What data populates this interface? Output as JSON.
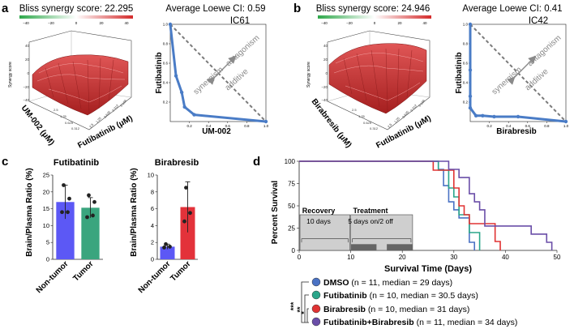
{
  "panel_labels": {
    "a": "a",
    "b": "b",
    "c": "c",
    "d": "d"
  },
  "colors": {
    "line_blue": "#4a7cc6",
    "dmso": "#4a72c4",
    "futibatinib": "#2aa58a",
    "birabresib": "#e03333",
    "combo": "#6a4ea8",
    "bar_blue": "#5c58f5",
    "bar_green": "#3aa57e",
    "bar_red": "#e3323a",
    "surface_red": "#c8302e"
  },
  "panel_a": {
    "colorbar_title": "Bliss synergy score: 22.295",
    "colorbar_ticks": [
      "−40",
      "−20",
      "0",
      "20",
      "40"
    ],
    "surface": {
      "z_label": "Synergy score",
      "z_ticks": [
        "40",
        "20",
        "0",
        "−20",
        "−40"
      ],
      "y_label": "UM-002 (μM)",
      "y_ticks": [
        "2.5",
        "1.25",
        "0.625",
        "0.312"
      ],
      "x_label": "Futibatinib (μM)",
      "x_ticks": [
        "0.156",
        "0.312",
        "0.625",
        "1.25",
        "2.5"
      ]
    },
    "isobologram": {
      "title_line1": "Average Loewe CI: 0.59",
      "title_line2": "IC61",
      "xlabel": "UM-002",
      "ylabel": "Futibatinib",
      "annot_antagonism": "antagonism",
      "annot_additive": "additive",
      "annot_synergism": "synergism"
    }
  },
  "panel_b": {
    "colorbar_title": "Bliss synergy score: 24.946",
    "colorbar_ticks": [
      "−40",
      "−20",
      "0",
      "20",
      "40"
    ],
    "surface": {
      "z_label": "Synergy score",
      "z_ticks": [
        "40",
        "20",
        "0",
        "−20",
        "−40"
      ],
      "y_label": "Birabresib (μM)",
      "y_ticks": [
        "2.5",
        "1.25",
        "0.625",
        "0.312"
      ],
      "x_label": "Futibatinib (μM)",
      "x_ticks": [
        "0.156",
        "0.312",
        "0.625",
        "1.25",
        "2.5"
      ]
    },
    "isobologram": {
      "title_line1": "Average Loewe CI: 0.41",
      "title_line2": "IC42",
      "xlabel": "Birabresib",
      "ylabel": "Futibatinib",
      "annot_antagonism": "antagonism",
      "annot_additive": "additive",
      "annot_synergism": "synergism"
    }
  },
  "panel_c": {
    "ylabel": "Brain/Plasma Ratio (%)"
  },
  "panel_d": {
    "recovery_label": "Recovery",
    "recovery_sub": "10 days",
    "treatment_label": "Treatment",
    "treatment_sub": "5 days on/2 off",
    "sig_outer": "***",
    "sig_middle": "**",
    "sig_inner": "*",
    "legend": [
      {
        "name": "DMSO",
        "detail": " (n = 11, median = 29 days)"
      },
      {
        "name": "Futibatinib",
        "detail": " (n = 10, median = 30.5 days)"
      },
      {
        "name": "Birabresib",
        "detail": " (n = 10, median = 31 days)"
      },
      {
        "name": "Futibatinib+Birabresib",
        "detail": " (n = 11, median = 34 days)"
      }
    ]
  },
  "chart_data": [
    {
      "type": "line",
      "id": "a-isobologram",
      "title": "Average Loewe CI: 0.59 IC61",
      "xlabel": "UM-002",
      "ylabel": "Futibatinib",
      "xlim": [
        0,
        1
      ],
      "ylim": [
        0,
        1
      ],
      "x_ticks": [
        0.2,
        0.4,
        0.6,
        0.8,
        1.0
      ],
      "x_tick_labels": [
        "0.2",
        "0.4",
        "0.6",
        "0.8",
        "1.0"
      ],
      "y_ticks": [
        0.2,
        0.4,
        0.6,
        0.8,
        1.0
      ],
      "y_tick_labels": [
        "0.2",
        "0.4",
        "0.6",
        "0.8",
        "1.0"
      ],
      "series": [
        {
          "name": "isobole",
          "x": [
            0.0,
            0.06,
            0.12,
            0.15,
            0.25,
            1.0
          ],
          "y": [
            1.0,
            0.47,
            0.3,
            0.15,
            0.07,
            0.0
          ]
        },
        {
          "name": "additive line",
          "style": "dashed",
          "x": [
            0,
            1
          ],
          "y": [
            1,
            0
          ]
        }
      ]
    },
    {
      "type": "line",
      "id": "b-isobologram",
      "title": "Average Loewe CI: 0.41 IC42",
      "xlabel": "Birabresib",
      "ylabel": "Futibatinib",
      "xlim": [
        0,
        1
      ],
      "ylim": [
        0,
        1
      ],
      "x_ticks": [
        0.2,
        0.4,
        0.6,
        0.8,
        1.0
      ],
      "x_tick_labels": [
        "0.2",
        "0.4",
        "0.6",
        "0.8",
        "1.0"
      ],
      "y_ticks": [
        0.2,
        0.4,
        0.6,
        0.8,
        1.0
      ],
      "y_tick_labels": [
        "0.2",
        "0.4",
        "0.6",
        "0.8",
        "1.0"
      ],
      "series": [
        {
          "name": "isobole",
          "x": [
            0.0,
            0.0,
            0.0,
            0.0,
            0.06,
            0.13,
            0.25,
            0.5,
            1.0
          ],
          "y": [
            1.0,
            0.53,
            0.26,
            0.14,
            0.06,
            0.06,
            0.05,
            0.05,
            0.0
          ]
        },
        {
          "name": "additive line",
          "style": "dashed",
          "x": [
            0,
            1
          ],
          "y": [
            1,
            0
          ]
        }
      ]
    },
    {
      "type": "bar",
      "id": "c-futibatinib",
      "title": "Futibatinib",
      "ylabel": "Brain/Plasma Ratio (%)",
      "ylim": [
        0,
        25
      ],
      "y_ticks": [
        0,
        5,
        10,
        15,
        20,
        25
      ],
      "categories": [
        "Non-tumor",
        "Tumor"
      ],
      "values": [
        17,
        15.3
      ],
      "errors": [
        5,
        3
      ],
      "points": [
        [
          22,
          14,
          14,
          18
        ],
        [
          19,
          13,
          12.5,
          17
        ]
      ]
    },
    {
      "type": "bar",
      "id": "c-birabresib",
      "title": "Birabresib",
      "ylabel": "Brain/Plasma Ratio (%)",
      "ylim": [
        0,
        10
      ],
      "y_ticks": [
        0,
        2,
        4,
        6,
        8,
        10
      ],
      "categories": [
        "Non-tumor",
        "Tumor"
      ],
      "values": [
        1.5,
        6.2
      ],
      "errors": [
        0.3,
        3.0
      ],
      "points": [
        [
          1.8,
          1.5,
          1.4
        ],
        [
          8.5,
          5.5,
          4.5
        ]
      ]
    },
    {
      "type": "line",
      "id": "d-survival",
      "xlabel": "Survival Time (Days)",
      "ylabel": "Percent Survival",
      "xlim": [
        0,
        50
      ],
      "ylim": [
        0,
        100
      ],
      "x_ticks": [
        0,
        10,
        20,
        30,
        40,
        50
      ],
      "y_ticks": [
        0,
        25,
        50,
        75,
        100
      ],
      "step": true,
      "recovery_days": [
        0,
        10
      ],
      "treatment_blocks": [
        [
          10,
          15
        ],
        [
          17,
          22
        ]
      ],
      "series": [
        {
          "name": "DMSO",
          "x": [
            0,
            27,
            28,
            29,
            30,
            31,
            33,
            34
          ],
          "y": [
            100,
            90.9,
            72.7,
            54.5,
            45.5,
            36.4,
            9.1,
            0
          ]
        },
        {
          "name": "Futibatinib",
          "x": [
            0,
            27,
            29,
            30,
            31,
            33,
            35
          ],
          "y": [
            100,
            90,
            70,
            60,
            40,
            20,
            0
          ]
        },
        {
          "name": "Birabresib",
          "x": [
            0,
            26,
            30,
            31,
            32,
            33,
            38,
            39
          ],
          "y": [
            100,
            90,
            70,
            50,
            40,
            30,
            10,
            0
          ]
        },
        {
          "name": "Futibatinib+Birabresib",
          "x": [
            0,
            29,
            31,
            33,
            34,
            35,
            36,
            45,
            48,
            49
          ],
          "y": [
            100,
            90.9,
            81.8,
            63.6,
            54.5,
            45.5,
            27.3,
            18.2,
            9.1,
            0
          ]
        }
      ]
    }
  ]
}
